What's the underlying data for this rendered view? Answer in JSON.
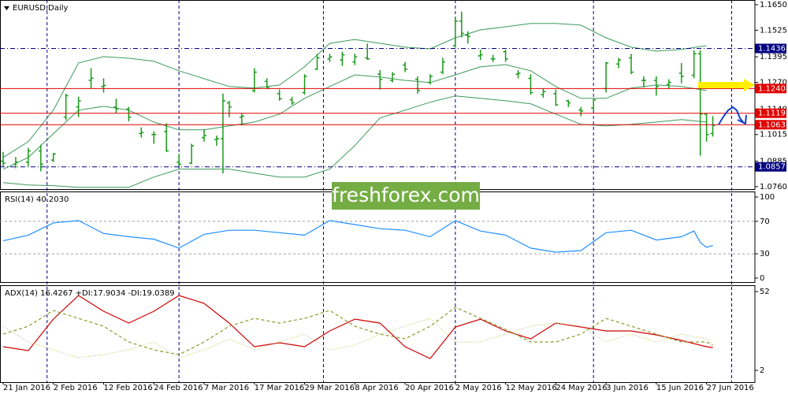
{
  "chart_data": [
    {
      "type": "ohlc",
      "title": "EURUSD,Daily",
      "watermark": "freshforex.com",
      "color": "#1a9a1a",
      "x": [
        0,
        2,
        4,
        6,
        8,
        10,
        12,
        14,
        16,
        18,
        20,
        22,
        24,
        26,
        28,
        30,
        32,
        34,
        35,
        36,
        38,
        40,
        42,
        44,
        46,
        48,
        50,
        52,
        54,
        56,
        58,
        60,
        62,
        64,
        66,
        68,
        70,
        72,
        73,
        74,
        76,
        78,
        80,
        82,
        84,
        86,
        88,
        90,
        92,
        94,
        96,
        98,
        100,
        102,
        104,
        106,
        108,
        110,
        111,
        112,
        113
      ],
      "open": [
        1.0885,
        1.087,
        1.088,
        1.0935,
        1.089,
        1.11,
        1.115,
        1.128,
        1.125,
        1.115,
        1.114,
        1.102,
        1.1015,
        1.103,
        1.088,
        1.0875,
        1.1,
        1.099,
        1.0995,
        1.117,
        1.11,
        1.123,
        1.1275,
        1.1215,
        1.1185,
        1.122,
        1.1335,
        1.1385,
        1.138,
        1.137,
        1.139,
        1.131,
        1.128,
        1.1355,
        1.1285,
        1.127,
        1.132,
        1.145,
        1.157,
        1.15,
        1.14,
        1.1385,
        1.142,
        1.131,
        1.129,
        1.121,
        1.1215,
        1.118,
        1.1135,
        1.1145,
        1.124,
        1.136,
        1.139,
        1.128,
        1.128,
        1.126,
        1.1315,
        1.1305,
        1.141,
        1.1115,
        1.102
      ],
      "high": [
        1.093,
        1.0905,
        1.095,
        1.0965,
        1.0925,
        1.1215,
        1.12,
        1.134,
        1.129,
        1.119,
        1.115,
        1.105,
        1.103,
        1.107,
        1.092,
        1.097,
        1.104,
        1.101,
        1.1215,
        1.118,
        1.112,
        1.134,
        1.129,
        1.1235,
        1.12,
        1.131,
        1.141,
        1.141,
        1.142,
        1.141,
        1.146,
        1.133,
        1.132,
        1.137,
        1.13,
        1.131,
        1.139,
        1.159,
        1.1616,
        1.152,
        1.143,
        1.1405,
        1.143,
        1.133,
        1.131,
        1.124,
        1.1235,
        1.1185,
        1.115,
        1.119,
        1.137,
        1.139,
        1.141,
        1.13,
        1.13,
        1.1285,
        1.1365,
        1.1427,
        1.1427,
        1.112,
        1.1105
      ],
      "low": [
        1.086,
        1.085,
        1.086,
        1.0835,
        1.088,
        1.1085,
        1.11,
        1.124,
        1.122,
        1.112,
        1.108,
        1.1,
        1.097,
        1.093,
        1.086,
        1.087,
        1.098,
        1.096,
        1.0825,
        1.11,
        1.106,
        1.122,
        1.124,
        1.118,
        1.116,
        1.121,
        1.133,
        1.137,
        1.135,
        1.1355,
        1.138,
        1.1235,
        1.127,
        1.132,
        1.1215,
        1.126,
        1.131,
        1.144,
        1.149,
        1.146,
        1.138,
        1.137,
        1.137,
        1.129,
        1.121,
        1.1195,
        1.1155,
        1.115,
        1.1105,
        1.113,
        1.122,
        1.134,
        1.131,
        1.1245,
        1.1205,
        1.124,
        1.1265,
        1.129,
        1.0912,
        1.098,
        1.1005
      ],
      "close": [
        1.0875,
        1.088,
        1.0935,
        1.087,
        1.092,
        1.1205,
        1.118,
        1.129,
        1.1255,
        1.114,
        1.11,
        1.1025,
        1.1015,
        1.0935,
        1.087,
        1.096,
        1.101,
        1.0995,
        1.118,
        1.115,
        1.1105,
        1.132,
        1.1245,
        1.119,
        1.117,
        1.13,
        1.139,
        1.1395,
        1.1405,
        1.1395,
        1.1385,
        1.1285,
        1.131,
        1.1335,
        1.123,
        1.13,
        1.137,
        1.157,
        1.151,
        1.1495,
        1.1405,
        1.1385,
        1.1385,
        1.1315,
        1.122,
        1.1225,
        1.116,
        1.117,
        1.113,
        1.1185,
        1.1365,
        1.138,
        1.132,
        1.128,
        1.125,
        1.127,
        1.13,
        1.141,
        1.1115,
        1.1015,
        1.106
      ],
      "overlays": [
        {
          "color": "#3c9a5a",
          "x": [
            0,
            4,
            8,
            12,
            16,
            20,
            24,
            28,
            32,
            36,
            40,
            44,
            48,
            52,
            56,
            60,
            64,
            68,
            72,
            76,
            80,
            84,
            88,
            92,
            96,
            100,
            104,
            108,
            112
          ],
          "upper": [
            1.0903,
            1.098,
            1.1134,
            1.1365,
            1.1396,
            1.1388,
            1.1373,
            1.1327,
            1.1288,
            1.125,
            1.1242,
            1.1257,
            1.1346,
            1.1461,
            1.148,
            1.1461,
            1.1442,
            1.1434,
            1.1488,
            1.1527,
            1.1542,
            1.1558,
            1.1558,
            1.155,
            1.1488,
            1.1442,
            1.1423,
            1.1431,
            1.145
          ],
          "middle": [
            1.0845,
            1.0903,
            1.1019,
            1.1134,
            1.1153,
            1.1134,
            1.1076,
            1.1038,
            1.1038,
            1.1057,
            1.1076,
            1.1115,
            1.1192,
            1.125,
            1.1307,
            1.1296,
            1.128,
            1.1269,
            1.1307,
            1.1346,
            1.1357,
            1.1327,
            1.125,
            1.1192,
            1.1192,
            1.1242,
            1.1257,
            1.125,
            1.123
          ],
          "lower": [
            1.078,
            1.0768,
            1.0765,
            1.0757,
            1.0757,
            1.0757,
            1.0807,
            1.0846,
            1.0846,
            1.0846,
            1.0826,
            1.0807,
            1.0807,
            1.0846,
            1.0961,
            1.1096,
            1.1134,
            1.1173,
            1.1204,
            1.1192,
            1.118,
            1.1165,
            1.1115,
            1.1065,
            1.1057,
            1.1065,
            1.1076,
            1.1088,
            1.1076
          ]
        }
      ],
      "levels": [
        {
          "value": 1.1436,
          "color": "#000080",
          "style": "dashdot"
        },
        {
          "value": 1.124,
          "label": "1.1240",
          "color": "#e00000",
          "style": "solid"
        },
        {
          "value": 1.1119,
          "color": "#e00000",
          "style": "solid"
        },
        {
          "value": 1.1063,
          "color": "#e00000",
          "style": "solid"
        },
        {
          "value": 1.0857,
          "color": "#000080",
          "style": "dashdot"
        }
      ],
      "xlim": [
        -0.5,
        119.7
      ],
      "ylim": [
        1.0748,
        1.1673
      ],
      "yticks": [
        {
          "value": 1.165,
          "label": "1.1650"
        },
        1.1525,
        1.1395,
        {
          "value": 1.127,
          "label": "1.1270"
        },
        {
          "value": 1.114,
          "label": "1.1140"
        },
        1.1015,
        1.0885,
        {
          "value": 1.076,
          "label": "1.0760"
        }
      ],
      "xticks": [
        {
          "value": 0,
          "label": "21 Jan 2016"
        },
        {
          "value": 8,
          "label": "2 Feb 2016"
        },
        {
          "value": 16,
          "label": "12 Feb 2016"
        },
        {
          "value": 24,
          "label": "24 Feb 2016"
        },
        {
          "value": 32,
          "label": "7 Mar 2016"
        },
        {
          "value": 40,
          "label": "17 Mar 2016"
        },
        {
          "value": 48,
          "label": "29 Mar 2016"
        },
        {
          "value": 56,
          "label": "8 Apr 2016"
        },
        {
          "value": 64,
          "label": "20 Apr 2016"
        },
        {
          "value": 72,
          "label": "2 May 2016"
        },
        {
          "value": 80,
          "label": "12 May 2016"
        },
        {
          "value": 88,
          "label": "24 May 2016"
        },
        {
          "value": 96,
          "label": "3 Jun 2016"
        },
        {
          "value": 104,
          "label": "15 Jun 2016"
        },
        {
          "value": 112,
          "label": "27 Jun 2016"
        }
      ],
      "vlines": [
        7,
        28,
        51,
        72,
        94,
        116
      ]
    },
    {
      "type": "line",
      "title": "RSI(14) 40.2030",
      "series": [
        {
          "color": "#1e90ff",
          "dash": "solid",
          "x": [
            0,
            4,
            8,
            12,
            16,
            20,
            24,
            28,
            32,
            36,
            40,
            44,
            48,
            52,
            56,
            60,
            64,
            68,
            72,
            76,
            80,
            84,
            88,
            92,
            96,
            100,
            104,
            108,
            110,
            111,
            112,
            113
          ],
          "values": [
            46,
            53,
            68,
            71,
            55,
            51,
            48,
            37,
            54,
            59,
            59,
            56,
            53,
            71,
            66,
            61,
            59,
            51,
            71,
            58,
            53,
            37,
            32,
            34,
            56,
            59,
            47,
            51,
            58,
            44,
            38,
            40.203
          ]
        }
      ],
      "hlines": [
        70,
        30
      ],
      "xlim": [
        -0.5,
        119.7
      ],
      "ylim": [
        -4.9,
        106.8
      ],
      "yticks": [
        100,
        70,
        30,
        0
      ]
    },
    {
      "type": "line",
      "title": "ADX(14) 16.4267 +DI:17.9034 -DI:19.0389",
      "series": [
        {
          "color": "#d00000",
          "dash": "solid",
          "x": [
            0,
            4,
            8,
            12,
            16,
            20,
            24,
            28,
            32,
            36,
            40,
            44,
            48,
            52,
            56,
            60,
            64,
            68,
            72,
            76,
            80,
            84,
            88,
            92,
            96,
            100,
            104,
            108,
            112,
            113
          ],
          "values": [
            17,
            14.5,
            34.5,
            49.5,
            39.5,
            32,
            39.5,
            49.5,
            44.5,
            32,
            17,
            19.5,
            17,
            27,
            34.5,
            32,
            17,
            9.5,
            29.5,
            34.5,
            27,
            22,
            32,
            29.5,
            27,
            27,
            24.5,
            21,
            17,
            16.4267
          ]
        },
        {
          "color": "#8a9a2a",
          "dash": "dashed",
          "x": [
            0,
            4,
            8,
            12,
            16,
            20,
            24,
            28,
            32,
            36,
            40,
            44,
            48,
            52,
            56,
            60,
            64,
            68,
            72,
            76,
            80,
            84,
            88,
            92,
            96,
            100,
            104,
            108,
            112,
            113
          ],
          "values": [
            25,
            30,
            40,
            35,
            30,
            20,
            15,
            12,
            20,
            30,
            35,
            32,
            35,
            40,
            30,
            25,
            22,
            30,
            42,
            35,
            28,
            20,
            20,
            25,
            35,
            30,
            25,
            20,
            20,
            17.9034
          ]
        },
        {
          "color": "#c8c870",
          "dash": "dotted",
          "x": [
            0,
            4,
            8,
            12,
            16,
            20,
            24,
            28,
            32,
            36,
            40,
            44,
            48,
            52,
            56,
            60,
            64,
            68,
            72,
            76,
            80,
            84,
            88,
            92,
            96,
            100,
            104,
            108,
            112,
            113
          ],
          "values": [
            30,
            20,
            15,
            10,
            12,
            15,
            20,
            10,
            15,
            22,
            15,
            20,
            25,
            15,
            18,
            25,
            30,
            35,
            20,
            20,
            25,
            30,
            32,
            30,
            20,
            25,
            20,
            25,
            22,
            19.0389
          ]
        }
      ],
      "xlim": [
        -0.5,
        119.7
      ],
      "ylim": [
        -5.5,
        56
      ],
      "yticks": [
        52,
        2
      ]
    }
  ]
}
